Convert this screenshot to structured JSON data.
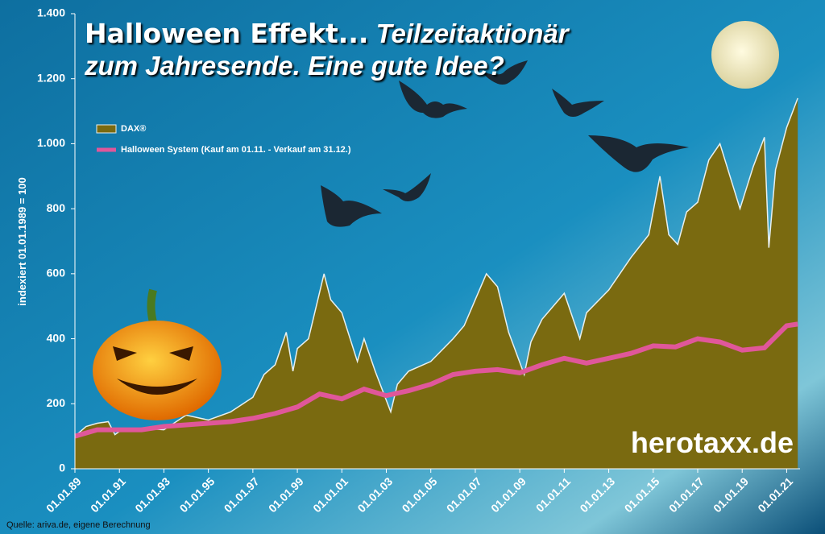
{
  "chart_data": {
    "type": "area",
    "title": "Halloween Effekt...",
    "subtitle": "Teilzeitaktionär zum Jahresende. Eine gute Idee?",
    "ylabel": "indexiert 01.01.1989 = 100",
    "source": "Quelle: ariva.de, eigene Berechnung",
    "watermark": "herotaxx.de",
    "xlim": [
      1989,
      2021.6
    ],
    "xticks": [
      {
        "value": 1989,
        "label": "01.01.89"
      },
      {
        "value": 1991,
        "label": "01.01.91"
      },
      {
        "value": 1993,
        "label": "01.01.93"
      },
      {
        "value": 1995,
        "label": "01.01.95"
      },
      {
        "value": 1997,
        "label": "01.01.97"
      },
      {
        "value": 1999,
        "label": "01.01.99"
      },
      {
        "value": 2001,
        "label": "01.01.01"
      },
      {
        "value": 2003,
        "label": "01.01.03"
      },
      {
        "value": 2005,
        "label": "01.01.05"
      },
      {
        "value": 2007,
        "label": "01.01.07"
      },
      {
        "value": 2009,
        "label": "01.01.09"
      },
      {
        "value": 2011,
        "label": "01.01.11"
      },
      {
        "value": 2013,
        "label": "01.01.13"
      },
      {
        "value": 2015,
        "label": "01.01.15"
      },
      {
        "value": 2017,
        "label": "01.01.17"
      },
      {
        "value": 2019,
        "label": "01.01.19"
      },
      {
        "value": 2021,
        "label": "01.01.21"
      }
    ],
    "ylim": [
      0,
      1400
    ],
    "yticks": [
      0,
      200,
      400,
      600,
      800,
      {
        "value": 1000,
        "label": "1.000"
      },
      {
        "value": 1200,
        "label": "1.200"
      },
      {
        "value": 1400,
        "label": "1.400"
      }
    ],
    "legend": "top-left",
    "series": [
      {
        "name": "DAX®",
        "color": "#7a6a10",
        "x": [
          1989,
          1989.5,
          1990,
          1990.5,
          1990.8,
          1991,
          1992,
          1993,
          1994,
          1995,
          1996,
          1997,
          1997.5,
          1998,
          1998.5,
          1998.8,
          1999,
          1999.5,
          2000.2,
          2000.5,
          2001,
          2001.7,
          2002,
          2002.5,
          2003.2,
          2003.5,
          2004,
          2005,
          2006,
          2006.5,
          2007,
          2007.5,
          2008,
          2008.5,
          2009.2,
          2009.5,
          2010,
          2011,
          2011.7,
          2012,
          2013,
          2014,
          2014.8,
          2015.3,
          2015.7,
          2016.1,
          2016.5,
          2017,
          2017.5,
          2018,
          2018.9,
          2019.5,
          2020,
          2020.2,
          2020.5,
          2021,
          2021.5
        ],
        "values": [
          100,
          130,
          140,
          145,
          105,
          115,
          125,
          120,
          165,
          150,
          175,
          220,
          290,
          320,
          420,
          300,
          370,
          400,
          600,
          520,
          480,
          330,
          400,
          300,
          175,
          260,
          300,
          330,
          400,
          440,
          520,
          600,
          560,
          420,
          290,
          390,
          460,
          540,
          400,
          480,
          550,
          650,
          720,
          900,
          720,
          690,
          790,
          820,
          950,
          1000,
          800,
          930,
          1020,
          680,
          920,
          1050,
          1140
        ]
      },
      {
        "name": "Halloween System (Kauf am 01.11. - Verkauf am 31.12.)",
        "color": "#e0579a",
        "x": [
          1989,
          1990,
          1991,
          1992,
          1993,
          1994,
          1995,
          1996,
          1997,
          1998,
          1999,
          2000,
          2001,
          2002,
          2003,
          2004,
          2005,
          2006,
          2007,
          2008,
          2009,
          2010,
          2011,
          2012,
          2013,
          2014,
          2015,
          2016,
          2017,
          2018,
          2019,
          2020,
          2021,
          2021.5
        ],
        "values": [
          100,
          120,
          120,
          120,
          130,
          135,
          140,
          145,
          155,
          170,
          190,
          230,
          215,
          245,
          225,
          240,
          260,
          290,
          300,
          305,
          295,
          320,
          340,
          325,
          340,
          355,
          378,
          375,
          400,
          390,
          365,
          372,
          440,
          445
        ]
      }
    ]
  }
}
